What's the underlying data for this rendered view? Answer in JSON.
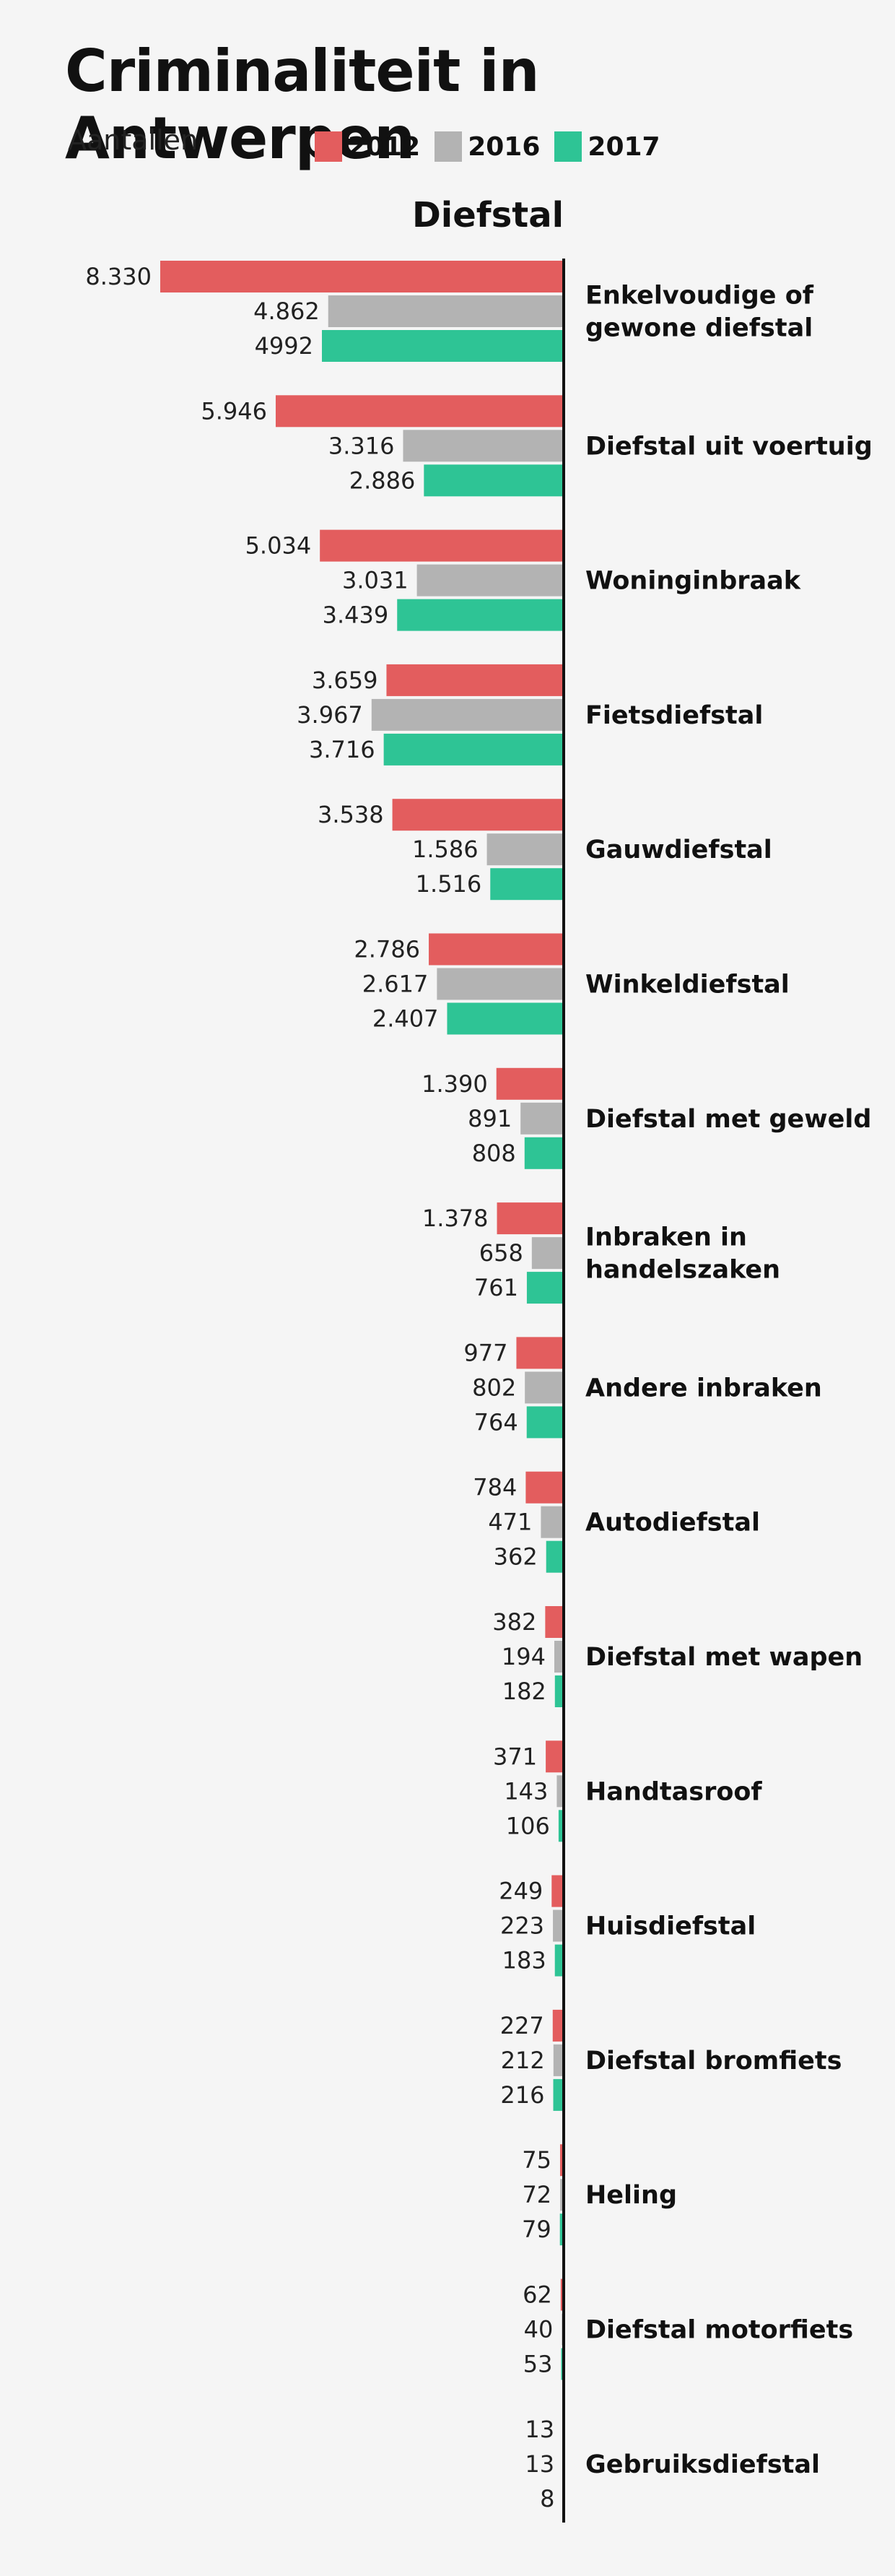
{
  "title": "Criminaliteit in Antwerpen",
  "unit_label": "Aantallen",
  "colors": {
    "2012": "#e35d5e",
    "2016": "#b3b3b3",
    "2017": "#2ec495",
    "axis": "#111111"
  },
  "chart_data": {
    "type": "bar",
    "orientation": "horizontal",
    "title": "Diefstal",
    "legend_position": "top",
    "categories": [
      "Enkelvoudige of gewone diefstal",
      "Diefstal uit voertuig",
      "Woninginbraak",
      "Fietsdiefstal",
      "Gauwdiefstal",
      "Winkeldiefstal",
      "Diefstal met geweld",
      "Inbraken in handelszaken",
      "Andere inbraken",
      "Autodiefstal",
      "Diefstal met wapen",
      "Handtasroof",
      "Huisdiefstal",
      "Diefstal bromfiets",
      "Heling",
      "Diefstal motorfiets",
      "Gebruiksdiefstal"
    ],
    "category_lines": [
      [
        "Enkelvoudige of",
        "gewone diefstal"
      ],
      [
        "Diefstal uit voertuig"
      ],
      [
        "Woninginbraak"
      ],
      [
        "Fietsdiefstal"
      ],
      [
        "Gauwdiefstal"
      ],
      [
        "Winkeldiefstal"
      ],
      [
        "Diefstal met geweld"
      ],
      [
        "Inbraken in",
        "handelszaken"
      ],
      [
        "Andere inbraken"
      ],
      [
        "Autodiefstal"
      ],
      [
        "Diefstal met wapen"
      ],
      [
        "Handtasroof"
      ],
      [
        "Huisdiefstal"
      ],
      [
        "Diefstal bromfiets"
      ],
      [
        "Heling"
      ],
      [
        "Diefstal motorfiets"
      ],
      [
        "Gebruiksdiefstal"
      ]
    ],
    "series": [
      {
        "name": "2012",
        "values": [
          8330,
          5946,
          5034,
          3659,
          3538,
          2786,
          1390,
          1378,
          977,
          784,
          382,
          371,
          249,
          227,
          75,
          62,
          13
        ],
        "labels": [
          "8.330",
          "5.946",
          "5.034",
          "3.659",
          "3.538",
          "2.786",
          "1.390",
          "1.378",
          "977",
          "784",
          "382",
          "371",
          "249",
          "227",
          "75",
          "62",
          "13"
        ]
      },
      {
        "name": "2016",
        "values": [
          4862,
          3316,
          3031,
          3967,
          1586,
          2617,
          891,
          658,
          802,
          471,
          194,
          143,
          223,
          212,
          72,
          40,
          13
        ],
        "labels": [
          "4.862",
          "3.316",
          "3.031",
          "3.967",
          "1.586",
          "2.617",
          "891",
          "658",
          "802",
          "471",
          "194",
          "143",
          "223",
          "212",
          "72",
          "40",
          "13"
        ]
      },
      {
        "name": "2017",
        "values": [
          4992,
          2886,
          3439,
          3716,
          1516,
          2407,
          808,
          761,
          764,
          362,
          182,
          106,
          183,
          216,
          79,
          53,
          8
        ],
        "labels": [
          "4992",
          "2.886",
          "3.439",
          "3.716",
          "1.516",
          "2.407",
          "808",
          "761",
          "764",
          "362",
          "182",
          "106",
          "183",
          "216",
          "79",
          "53",
          "8"
        ]
      }
    ],
    "xlim": [
      0,
      8330
    ],
    "grid": false
  }
}
